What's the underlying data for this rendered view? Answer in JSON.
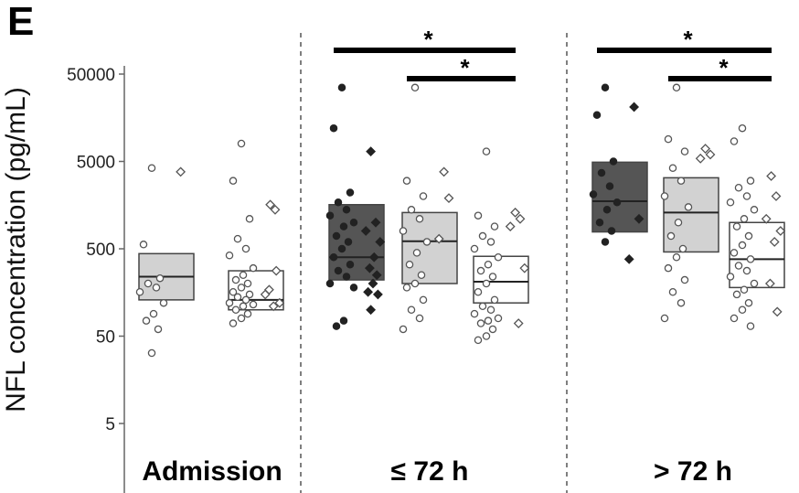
{
  "panel_label": "E",
  "colors": {
    "dark": "#555555",
    "light": "#d2d2d2",
    "white": "#ffffff",
    "line": "#000000"
  },
  "chart_data": {
    "type": "box",
    "title": "",
    "ylabel": "NFL concentration (pg/mL)",
    "xlabel": "",
    "yscale": "log",
    "ylim": [
      5,
      50000
    ],
    "yticks": [
      5,
      50,
      500,
      5000,
      50000
    ],
    "grid": false,
    "legend": "none",
    "groups": [
      {
        "label": "Admission",
        "boxes": [
          {
            "fill": "light",
            "q1": 130,
            "median": 240,
            "q3": 440,
            "points": [
              4200,
              560,
              230,
              200,
              180,
              160,
              120,
              90,
              75,
              60,
              32
            ]
          },
          {
            "fill": "white",
            "q1": 100,
            "median": 130,
            "q3": 280,
            "points": [
              8000,
              3000,
              1100,
              650,
              500,
              420,
              300,
              250,
              220,
              200,
              180,
              160,
              150,
              140,
              130,
              120,
              115,
              110,
              100,
              90,
              80,
              70
            ]
          }
        ],
        "extra_points": [
          {
            "box": 0,
            "values": [
              3800
            ]
          },
          {
            "box": 1,
            "values": [
              1600,
              1400,
              150,
              120,
              110,
              170,
              280
            ]
          }
        ]
      },
      {
        "label": "≤ 72 h",
        "boxes": [
          {
            "fill": "dark",
            "q1": 220,
            "median": 400,
            "q3": 1600,
            "points": [
              35000,
              12000,
              2200,
              1700,
              1400,
              1200,
              1000,
              900,
              700,
              600,
              500,
              400,
              330,
              280,
              240,
              200,
              180,
              75,
              65
            ]
          },
          {
            "fill": "light",
            "q1": 200,
            "median": 610,
            "q3": 1300,
            "points": [
              35000,
              3000,
              2000,
              1400,
              1100,
              800,
              600,
              450,
              330,
              250,
              200,
              180,
              130,
              100,
              80,
              60
            ]
          },
          {
            "fill": "white",
            "q1": 120,
            "median": 210,
            "q3": 410,
            "points": [
              6500,
              1200,
              900,
              700,
              600,
              500,
              400,
              330,
              280,
              240,
              200,
              160,
              130,
              110,
              100,
              90,
              80,
              75,
              70,
              60,
              50,
              45
            ]
          }
        ],
        "extra_points": [
          {
            "box": 0,
            "values": [
              6500,
              1000,
              800,
              600,
              400,
              300,
              250,
              200,
              160,
              150,
              100
            ]
          },
          {
            "box": 1,
            "values": [
              3800,
              1900,
              650
            ]
          },
          {
            "box": 2,
            "values": [
              1300,
              1100,
              900,
              300,
              70
            ]
          }
        ]
      },
      {
        "label": "> 72 h",
        "boxes": [
          {
            "fill": "dark",
            "q1": 780,
            "median": 1750,
            "q3": 4900,
            "points": [
              35000,
              17000,
              5000,
              3700,
              2600,
              2100,
              1700,
              1400,
              1000,
              800,
              600
            ]
          },
          {
            "fill": "light",
            "q1": 460,
            "median": 1300,
            "q3": 3250,
            "points": [
              35000,
              9000,
              6500,
              4200,
              3000,
              2000,
              1500,
              1000,
              700,
              500,
              400,
              300,
              220,
              160,
              120,
              80
            ]
          },
          {
            "fill": "white",
            "q1": 180,
            "median": 380,
            "q3": 1000,
            "points": [
              12000,
              8500,
              3000,
              2500,
              2000,
              1700,
              1400,
              1100,
              900,
              700,
              550,
              450,
              380,
              320,
              280,
              240,
              200,
              170,
              150,
              120,
              100,
              80,
              65
            ]
          }
        ],
        "extra_points": [
          {
            "box": 0,
            "values": [
              21000,
              1100,
              380
            ]
          },
          {
            "box": 1,
            "values": [
              7000,
              6000,
              5400
            ]
          },
          {
            "box": 2,
            "values": [
              3400,
              2000,
              1100,
              800,
              600,
              200,
              95
            ]
          }
        ]
      }
    ],
    "significance": [
      {
        "group": 1,
        "from": 0,
        "to": 2,
        "label": "*"
      },
      {
        "group": 1,
        "from": 1,
        "to": 2,
        "label": "*"
      },
      {
        "group": 2,
        "from": 0,
        "to": 2,
        "label": "*"
      },
      {
        "group": 2,
        "from": 1,
        "to": 2,
        "label": "*"
      }
    ]
  }
}
